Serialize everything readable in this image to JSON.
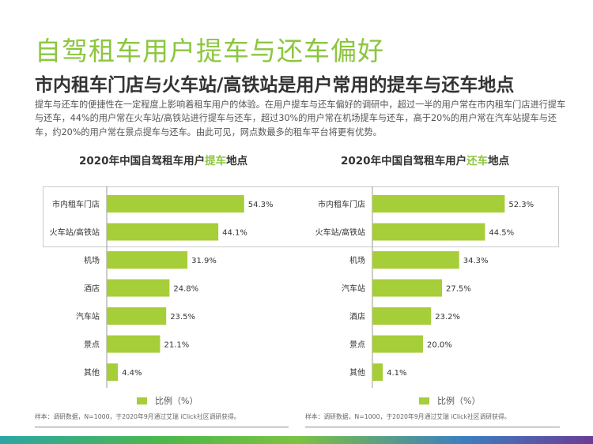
{
  "header": {
    "title": "自驾租车用户提车与还车偏好",
    "subtitle": "市内租车门店与火车站/高铁站是用户常用的提车与还车地点",
    "paragraph": "提车与还车的便捷性在一定程度上影响着租车用户的体验。在用户提车与还车偏好的调研中，超过一半的用户常在市内租车门店进行提车与还车，44%的用户常在火车站/高铁站进行提车与还车，超过30%的用户常在机场提车与还车，高于20%的用户常在汽车站提车与还车，约20%的用户常在景点提车与还车。由此可见，网点数最多的租车平台将更有优势。"
  },
  "colors": {
    "accent": "#8cc63f",
    "bar": "#a6ce39",
    "text": "#333333"
  },
  "charts": [
    {
      "title_prefix": "2020年中国自驾租车用户",
      "title_highlight": "提车",
      "title_suffix": "地点",
      "legend": "比例（%）",
      "sample_note": "样本：调研数据，N=1000，于2020年9月通过艾瑞 iClick社区调研获得。"
    },
    {
      "title_prefix": "2020年中国自驾租车用户",
      "title_highlight": "还车",
      "title_suffix": "地点",
      "legend": "比例（%）",
      "sample_note": "样本：调研数据，N=1000，于2020年9月通过艾瑞 iClick社区调研获得。"
    }
  ],
  "chart_data": [
    {
      "type": "bar",
      "orientation": "horizontal",
      "title": "2020年中国自驾租车用户提车地点",
      "categories": [
        "市内租车门店",
        "火车站/高铁站",
        "机场",
        "酒店",
        "汽车站",
        "景点",
        "其他"
      ],
      "values": [
        54.3,
        44.1,
        31.9,
        24.8,
        23.5,
        21.1,
        4.4
      ],
      "labels": [
        "54.3%",
        "44.1%",
        "31.9%",
        "24.8%",
        "23.5%",
        "21.1%",
        "4.4%"
      ],
      "unit": "%",
      "legend": "比例（%）",
      "xlim": [
        0,
        60
      ]
    },
    {
      "type": "bar",
      "orientation": "horizontal",
      "title": "2020年中国自驾租车用户还车地点",
      "categories": [
        "市内租车门店",
        "火车站/高铁站",
        "机场",
        "汽车站",
        "酒店",
        "景点",
        "其他"
      ],
      "values": [
        52.3,
        44.5,
        34.3,
        27.5,
        23.2,
        20.0,
        4.1
      ],
      "labels": [
        "52.3%",
        "44.5%",
        "34.3%",
        "27.5%",
        "23.2%",
        "20.0%",
        "4.1%"
      ],
      "unit": "%",
      "legend": "比例（%）",
      "xlim": [
        0,
        60
      ]
    }
  ]
}
